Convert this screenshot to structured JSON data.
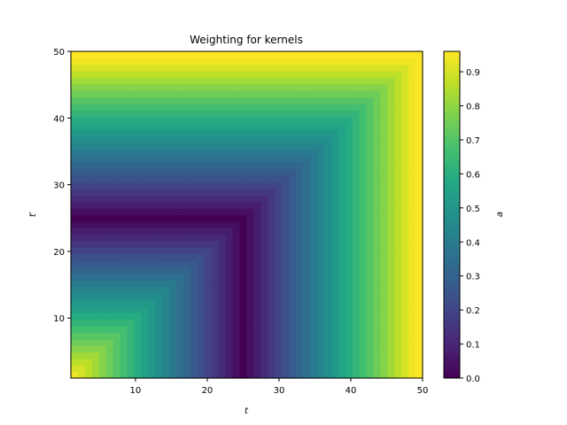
{
  "chart_data": {
    "type": "heatmap",
    "title": "Weighting for kernels",
    "xlabel": "t",
    "ylabel": "t′",
    "xlim": [
      1,
      50
    ],
    "ylim": [
      1,
      50
    ],
    "x_ticks": [
      10,
      20,
      30,
      40,
      50
    ],
    "y_ticks": [
      10,
      20,
      30,
      40,
      50
    ],
    "grid_size": 50,
    "value_function": "a(t, t') = 0.96 - min(|max(t, t') - 25|, 25) * 0.96 / 25 capped so the L-shaped contour around the diagonal band reaches 0 near max(t,t') ≈ 25",
    "colorbar": {
      "label": "a",
      "range": [
        0.0,
        0.96
      ],
      "ticks": [
        0.0,
        0.1,
        0.2,
        0.3,
        0.4,
        0.5,
        0.6,
        0.7,
        0.8,
        0.9
      ],
      "tick_labels": [
        "0.0",
        "0.1",
        "0.2",
        "0.3",
        "0.4",
        "0.5",
        "0.6",
        "0.7",
        "0.8",
        "0.9"
      ],
      "colormap": "viridis"
    }
  }
}
